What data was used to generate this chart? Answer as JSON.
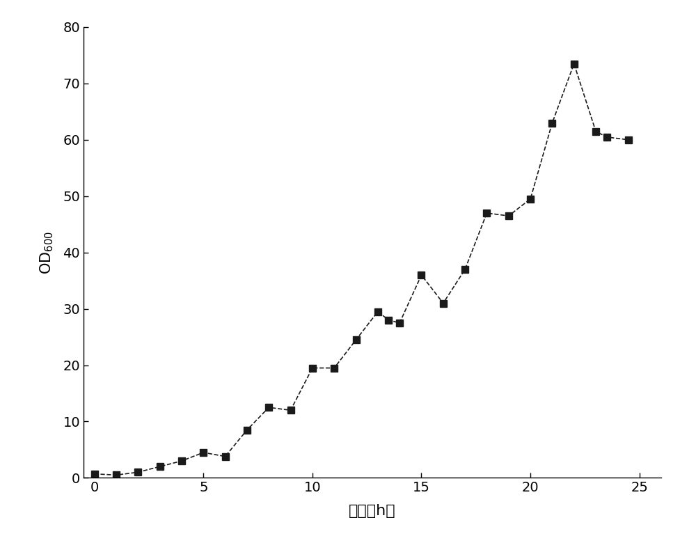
{
  "x": [
    0,
    1,
    2,
    3,
    4,
    5,
    6,
    7,
    8,
    9,
    10,
    11,
    12,
    13,
    13.5,
    14,
    15,
    16,
    17,
    18,
    19,
    20,
    21,
    22,
    23,
    23.5,
    24.5
  ],
  "y": [
    0.7,
    0.5,
    1.0,
    2.0,
    3.0,
    4.5,
    3.8,
    8.5,
    12.5,
    12.0,
    19.5,
    19.5,
    24.5,
    29.5,
    28.0,
    27.5,
    36.0,
    31.0,
    37.0,
    47.0,
    46.5,
    49.5,
    63.0,
    73.5,
    61.5,
    60.5,
    60.0
  ],
  "xlabel": "时间（h）",
  "ylabel": "OD",
  "ylabel_sub": "600",
  "xlim": [
    -0.5,
    26
  ],
  "ylim": [
    0,
    80
  ],
  "xticks": [
    0,
    5,
    10,
    15,
    20,
    25
  ],
  "yticks": [
    0,
    10,
    20,
    30,
    40,
    50,
    60,
    70,
    80
  ],
  "line_color": "#1a1a1a",
  "marker": "s",
  "markersize": 7,
  "linewidth": 1.2,
  "linestyle": "--",
  "background_color": "#ffffff",
  "xlabel_fontsize": 16,
  "ylabel_fontsize": 15,
  "tick_fontsize": 14
}
